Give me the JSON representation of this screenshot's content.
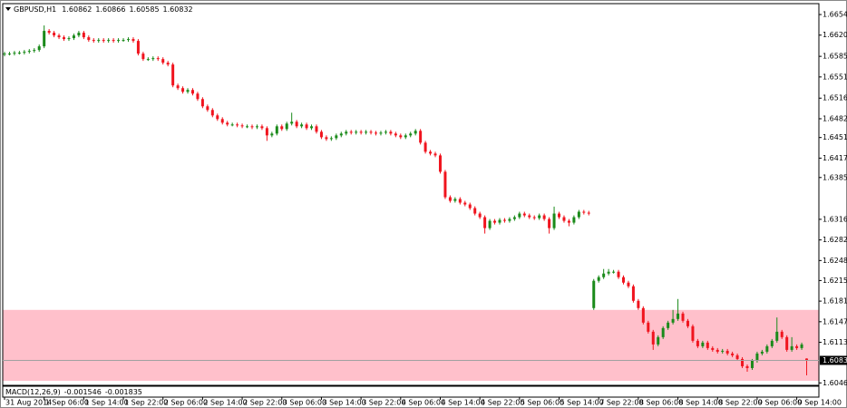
{
  "chart_data": {
    "type": "candlestick",
    "title": "GBPUSD,H1",
    "indicator": {
      "name": "MACD(12,26,9)",
      "values": [
        -0.001546,
        -0.001835
      ]
    },
    "up_color": "#1a8a1a",
    "down_color": "#f0141e",
    "zone": {
      "from": 1.60495,
      "to": 1.61665,
      "color": "#ffc0cb"
    },
    "ylim": [
      1.6042,
      1.6672
    ],
    "yticks": [
      {
        "value": 1.6654,
        "label": "1.66540"
      },
      {
        "value": 1.662,
        "label": "1.66200"
      },
      {
        "value": 1.6585,
        "label": "1.65850"
      },
      {
        "value": 1.6551,
        "label": "1.65510"
      },
      {
        "value": 1.6516,
        "label": "1.65160"
      },
      {
        "value": 1.6482,
        "label": "1.64820"
      },
      {
        "value": 1.6451,
        "label": "1.64510"
      },
      {
        "value": 1.6417,
        "label": "1.64170"
      },
      {
        "value": 1.6385,
        "label": "1.63850"
      },
      {
        "value": 1.6316,
        "label": "1.63160"
      },
      {
        "value": 1.6282,
        "label": "1.62820"
      },
      {
        "value": 1.6248,
        "label": "1.62480"
      },
      {
        "value": 1.6215,
        "label": "1.62150"
      },
      {
        "value": 1.6181,
        "label": "1.61810"
      },
      {
        "value": 1.6147,
        "label": "1.61470"
      },
      {
        "value": 1.6113,
        "label": "1.61130"
      },
      {
        "value": 1.6046,
        "label": "1.60460"
      }
    ],
    "categories": [
      "31 Aug 2014",
      null,
      null,
      null,
      null,
      null,
      null,
      null,
      "1 Sep 06:00",
      null,
      null,
      null,
      null,
      null,
      null,
      null,
      "1 Sep 14:00",
      null,
      null,
      null,
      null,
      null,
      null,
      null,
      "1 Sep 22:00",
      null,
      null,
      null,
      null,
      null,
      null,
      null,
      "2 Sep 06:00",
      null,
      null,
      null,
      null,
      null,
      null,
      null,
      "2 Sep 14:00",
      null,
      null,
      null,
      null,
      null,
      null,
      null,
      "2 Sep 22:00",
      null,
      null,
      null,
      null,
      null,
      null,
      null,
      "3 Sep 06:00",
      null,
      null,
      null,
      null,
      null,
      null,
      null,
      "3 Sep 14:00",
      null,
      null,
      null,
      null,
      null,
      null,
      null,
      "3 Sep 22:00",
      null,
      null,
      null,
      null,
      null,
      null,
      null,
      "4 Sep 06:00",
      null,
      null,
      null,
      null,
      null,
      null,
      null,
      "4 Sep 14:00",
      null,
      null,
      null,
      null,
      null,
      null,
      null,
      "4 Sep 22:00",
      null,
      null,
      null,
      null,
      null,
      null,
      null,
      "5 Sep 06:00",
      null,
      null,
      null,
      null,
      null,
      null,
      null,
      "5 Sep 14:00",
      null,
      null,
      null,
      null,
      null,
      null,
      null,
      "7 Sep 22:00",
      null,
      null,
      null,
      null,
      null,
      null,
      null,
      "8 Sep 06:00",
      null,
      null,
      null,
      null,
      null,
      null,
      null,
      "8 Sep 14:00",
      null,
      null,
      null,
      null,
      null,
      null,
      null,
      "8 Sep 22:00",
      null,
      null,
      null,
      null,
      null,
      null,
      null,
      "9 Sep 06:00",
      null,
      null,
      null,
      null,
      null,
      null,
      null,
      "9 Sep 14:00",
      null,
      null
    ],
    "open": [
      1.6588,
      1.65895,
      1.65895,
      1.6591,
      1.6591,
      1.65925,
      1.6594,
      1.65955,
      1.66015,
      1.6627,
      1.6624,
      1.66195,
      1.66165,
      1.66135,
      1.6615,
      1.66195,
      1.6624,
      1.66165,
      1.6612,
      1.66105,
      1.6612,
      1.66105,
      1.6612,
      1.66105,
      1.6612,
      1.6612,
      1.66135,
      1.66105,
      1.65895,
      1.65805,
      1.65805,
      1.6582,
      1.65805,
      1.65745,
      1.65715,
      1.6537,
      1.65325,
      1.65265,
      1.65295,
      1.65235,
      1.65145,
      1.65025,
      1.64965,
      1.64875,
      1.64815,
      1.64755,
      1.64725,
      1.64725,
      1.6471,
      1.64695,
      1.64695,
      1.6468,
      1.64695,
      1.64665,
      1.64545,
      1.64575,
      1.64695,
      1.6465,
      1.6474,
      1.6477,
      1.64695,
      1.64725,
      1.64665,
      1.64695,
      1.64605,
      1.64515,
      1.64485,
      1.645,
      1.64545,
      1.64575,
      1.64605,
      1.6459,
      1.64605,
      1.6459,
      1.64605,
      1.6459,
      1.64575,
      1.6459,
      1.64605,
      1.64575,
      1.64545,
      1.64515,
      1.64545,
      1.64575,
      1.6462,
      1.64425,
      1.64275,
      1.64245,
      1.64215,
      1.63945,
      1.63525,
      1.63465,
      1.63495,
      1.63435,
      1.63405,
      1.63345,
      1.63255,
      1.63195,
      1.63015,
      1.63135,
      1.63105,
      1.6315,
      1.63135,
      1.63165,
      1.63195,
      1.63255,
      1.63225,
      1.63195,
      1.6318,
      1.63225,
      1.63165,
      1.63015,
      1.63255,
      1.63195,
      1.63135,
      1.63105,
      1.63195,
      1.63285,
      1.6327,
      1.61695,
      1.62145,
      1.62205,
      1.62265,
      1.62295,
      1.62295,
      1.62205,
      1.62115,
      1.62055,
      1.61815,
      1.61695,
      1.61455,
      1.61305,
      1.61095,
      1.61215,
      1.61365,
      1.61455,
      1.61515,
      1.61605,
      1.61485,
      1.61395,
      1.61155,
      1.61065,
      1.61125,
      1.61035,
      1.61005,
      1.60975,
      1.6099,
      1.60945,
      1.60915,
      1.60855,
      1.60735,
      1.60705,
      1.60825,
      1.60945,
      1.60975,
      1.61065,
      1.61155,
      1.61305,
      1.61215,
      1.61005,
      1.61065,
      1.61035,
      1.60862
    ],
    "high": [
      1.65925,
      1.65925,
      1.6594,
      1.6594,
      1.65955,
      1.6597,
      1.65985,
      1.66045,
      1.6636,
      1.663,
      1.6627,
      1.66225,
      1.66195,
      1.6618,
      1.66225,
      1.6627,
      1.6627,
      1.66195,
      1.6615,
      1.6615,
      1.6615,
      1.6615,
      1.6615,
      1.6615,
      1.6615,
      1.66165,
      1.66165,
      1.66135,
      1.65925,
      1.65835,
      1.6585,
      1.6585,
      1.65835,
      1.65775,
      1.65745,
      1.654,
      1.65355,
      1.65325,
      1.65325,
      1.65265,
      1.65175,
      1.65055,
      1.64995,
      1.64905,
      1.64845,
      1.64785,
      1.64755,
      1.64755,
      1.6474,
      1.64725,
      1.64725,
      1.64725,
      1.64725,
      1.64695,
      1.64605,
      1.64725,
      1.64725,
      1.6477,
      1.6492,
      1.648,
      1.64755,
      1.64755,
      1.64725,
      1.64725,
      1.64635,
      1.64545,
      1.6453,
      1.64575,
      1.64605,
      1.64635,
      1.64635,
      1.64635,
      1.64635,
      1.64635,
      1.64635,
      1.6462,
      1.6462,
      1.64635,
      1.64635,
      1.64605,
      1.64575,
      1.64575,
      1.64605,
      1.6465,
      1.6465,
      1.64455,
      1.64305,
      1.64275,
      1.64245,
      1.63975,
      1.63555,
      1.63525,
      1.63525,
      1.63465,
      1.63435,
      1.63375,
      1.63285,
      1.63225,
      1.63165,
      1.63165,
      1.6318,
      1.6318,
      1.63195,
      1.63225,
      1.63285,
      1.63285,
      1.63255,
      1.63225,
      1.63255,
      1.63255,
      1.63195,
      1.6337,
      1.63285,
      1.63225,
      1.63165,
      1.63225,
      1.63315,
      1.63315,
      1.633,
      1.62175,
      1.62235,
      1.6234,
      1.6234,
      1.62325,
      1.62325,
      1.62235,
      1.62145,
      1.62085,
      1.61845,
      1.61725,
      1.61485,
      1.61335,
      1.61245,
      1.61395,
      1.61485,
      1.61665,
      1.61845,
      1.61635,
      1.61515,
      1.61425,
      1.61185,
      1.61155,
      1.61155,
      1.61065,
      1.61035,
      1.6102,
      1.6102,
      1.60975,
      1.60945,
      1.60885,
      1.60765,
      1.60855,
      1.60975,
      1.61005,
      1.61095,
      1.61185,
      1.6154,
      1.61335,
      1.61245,
      1.61215,
      1.61095,
      1.61125,
      1.60866
    ],
    "low": [
      1.6585,
      1.65865,
      1.65865,
      1.6588,
      1.6588,
      1.65895,
      1.6591,
      1.65925,
      1.65985,
      1.6621,
      1.66165,
      1.66135,
      1.66105,
      1.66105,
      1.6612,
      1.66165,
      1.66135,
      1.6609,
      1.66075,
      1.66075,
      1.66075,
      1.66075,
      1.66075,
      1.66075,
      1.6609,
      1.6609,
      1.66075,
      1.65865,
      1.65775,
      1.65775,
      1.65775,
      1.65775,
      1.65715,
      1.65685,
      1.6534,
      1.65295,
      1.65235,
      1.65235,
      1.65205,
      1.65115,
      1.64995,
      1.64935,
      1.64845,
      1.64785,
      1.64725,
      1.64695,
      1.64695,
      1.6468,
      1.64665,
      1.64665,
      1.6465,
      1.6465,
      1.64635,
      1.64455,
      1.64515,
      1.64545,
      1.6462,
      1.6462,
      1.6471,
      1.64665,
      1.64665,
      1.64635,
      1.64635,
      1.64575,
      1.64485,
      1.64455,
      1.64455,
      1.6447,
      1.64515,
      1.64545,
      1.6456,
      1.6456,
      1.6456,
      1.6456,
      1.6456,
      1.64545,
      1.64545,
      1.6456,
      1.64545,
      1.64515,
      1.64485,
      1.64485,
      1.64515,
      1.64545,
      1.64395,
      1.64245,
      1.64215,
      1.64185,
      1.63915,
      1.63495,
      1.63435,
      1.63435,
      1.63405,
      1.63375,
      1.63315,
      1.63225,
      1.63165,
      1.62925,
      1.62985,
      1.63075,
      1.63075,
      1.63105,
      1.63105,
      1.63135,
      1.63165,
      1.63195,
      1.63165,
      1.6315,
      1.6315,
      1.63135,
      1.62925,
      1.62985,
      1.63165,
      1.63105,
      1.63045,
      1.63075,
      1.63165,
      1.6324,
      1.63225,
      1.61665,
      1.62115,
      1.62175,
      1.62235,
      1.62265,
      1.62175,
      1.62085,
      1.62025,
      1.61785,
      1.61665,
      1.61425,
      1.61275,
      1.61005,
      1.61065,
      1.61185,
      1.61335,
      1.61425,
      1.61485,
      1.61455,
      1.61365,
      1.61125,
      1.61035,
      1.61035,
      1.61005,
      1.60975,
      1.60945,
      1.60945,
      1.60915,
      1.60885,
      1.60825,
      1.60705,
      1.60645,
      1.60675,
      1.60795,
      1.60915,
      1.60945,
      1.61035,
      1.61125,
      1.61185,
      1.60975,
      1.60975,
      1.61005,
      1.61005,
      1.60585
    ],
    "close": [
      1.65895,
      1.65895,
      1.6591,
      1.6591,
      1.65925,
      1.6594,
      1.65955,
      1.66015,
      1.6627,
      1.6624,
      1.66195,
      1.66165,
      1.66135,
      1.6615,
      1.66195,
      1.6624,
      1.66165,
      1.6612,
      1.66105,
      1.6612,
      1.66105,
      1.6612,
      1.66105,
      1.6612,
      1.6612,
      1.66135,
      1.66105,
      1.65895,
      1.65805,
      1.65805,
      1.6582,
      1.65805,
      1.65745,
      1.65715,
      1.6537,
      1.65325,
      1.65265,
      1.65295,
      1.65235,
      1.65145,
      1.65025,
      1.64965,
      1.64875,
      1.64815,
      1.64755,
      1.64725,
      1.64725,
      1.6471,
      1.64695,
      1.64695,
      1.6468,
      1.64695,
      1.64665,
      1.64545,
      1.64575,
      1.64695,
      1.6465,
      1.6474,
      1.6477,
      1.64695,
      1.64725,
      1.64665,
      1.64695,
      1.64605,
      1.64515,
      1.64485,
      1.645,
      1.64545,
      1.64575,
      1.64605,
      1.6459,
      1.64605,
      1.6459,
      1.64605,
      1.6459,
      1.64575,
      1.6459,
      1.64605,
      1.64575,
      1.64545,
      1.64515,
      1.64545,
      1.64575,
      1.6462,
      1.64425,
      1.64275,
      1.64245,
      1.64215,
      1.63945,
      1.63525,
      1.63465,
      1.63495,
      1.63435,
      1.63405,
      1.63345,
      1.63255,
      1.63195,
      1.63015,
      1.63135,
      1.63105,
      1.6315,
      1.63135,
      1.63165,
      1.63195,
      1.63255,
      1.63225,
      1.63195,
      1.6318,
      1.63225,
      1.63165,
      1.63015,
      1.63255,
      1.63195,
      1.63135,
      1.63105,
      1.63195,
      1.63285,
      1.6327,
      1.63255,
      1.62145,
      1.62205,
      1.62265,
      1.62295,
      1.62295,
      1.62205,
      1.62115,
      1.62055,
      1.61815,
      1.61695,
      1.61455,
      1.61305,
      1.61095,
      1.61215,
      1.61365,
      1.61455,
      1.61515,
      1.61605,
      1.61485,
      1.61395,
      1.61155,
      1.61065,
      1.61125,
      1.61035,
      1.61005,
      1.60975,
      1.6099,
      1.60945,
      1.60915,
      1.60855,
      1.60735,
      1.60705,
      1.60825,
      1.60945,
      1.60975,
      1.61065,
      1.61155,
      1.61305,
      1.61215,
      1.61005,
      1.61065,
      1.61035,
      1.61095,
      1.60832
    ]
  }
}
